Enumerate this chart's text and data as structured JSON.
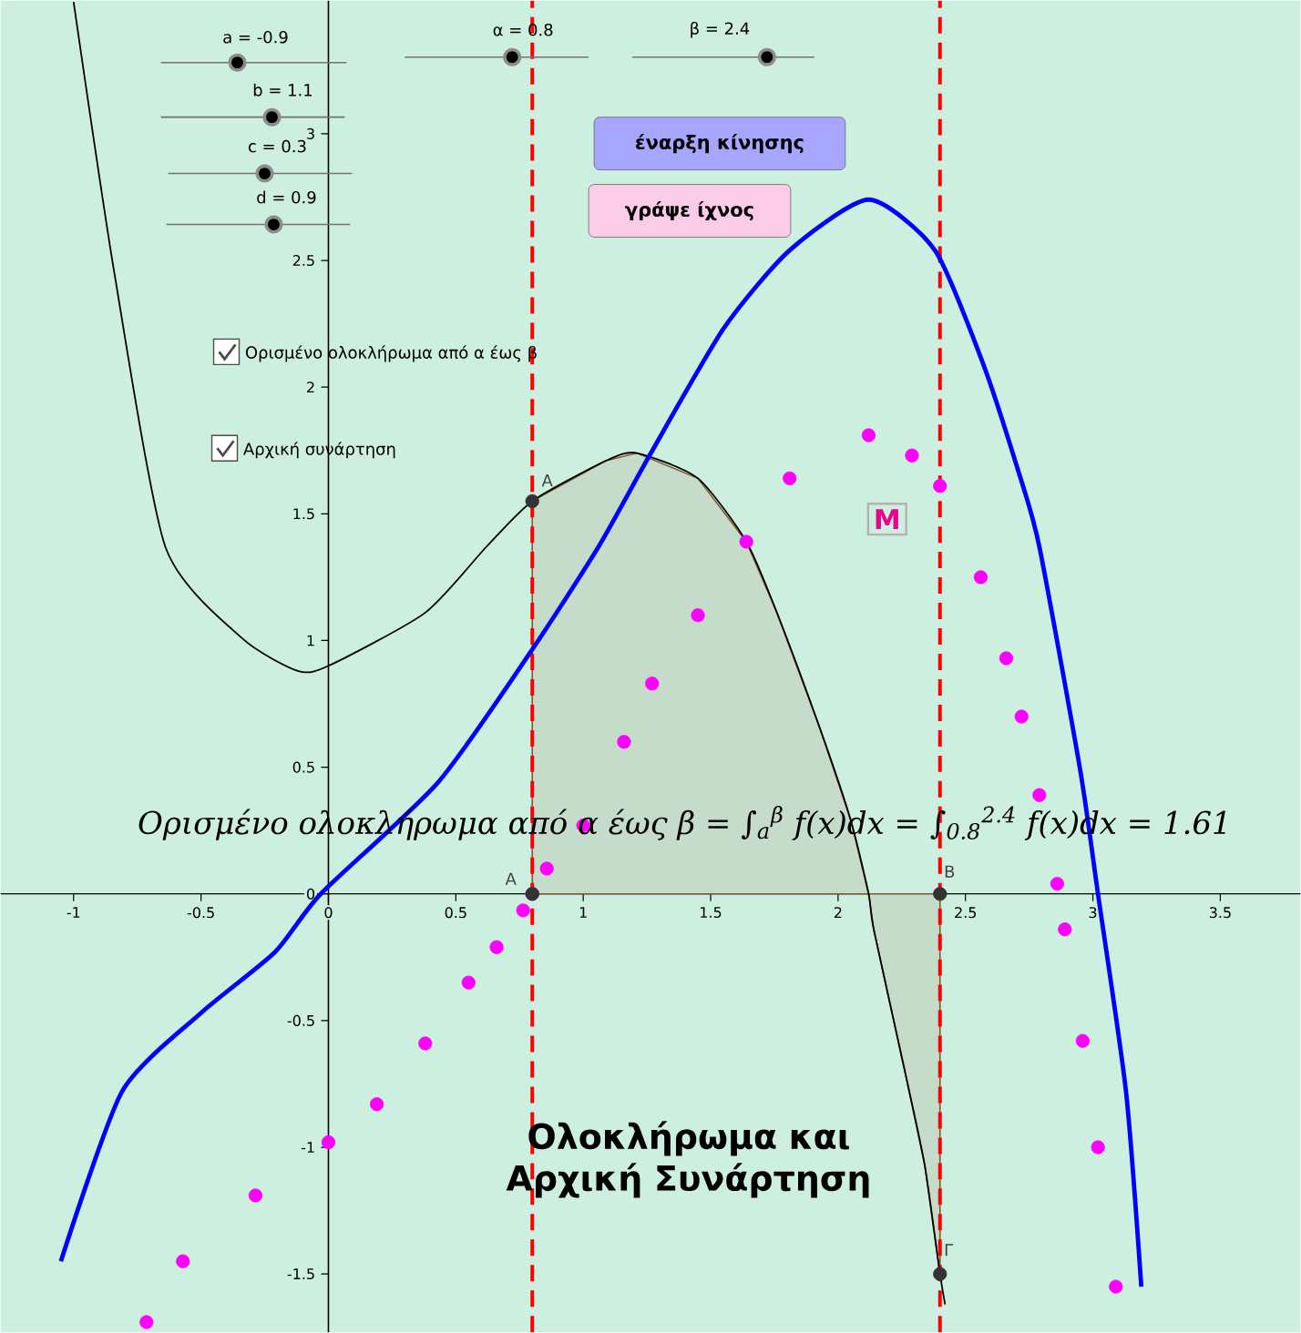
{
  "chart_data": {
    "type": "line",
    "title": "Ολοκλήρωμα και Αρχική Συνάρτηση",
    "xlim": [
      -1.286,
      3.814
    ],
    "ylim": [
      -1.73,
      3.525
    ],
    "xticks": [
      -1,
      -0.5,
      0,
      0.5,
      1,
      1.5,
      2,
      2.5,
      3,
      3.5
    ],
    "yticks": [
      -1.5,
      -1,
      -0.5,
      0,
      0.5,
      1,
      1.5,
      2,
      2.5,
      3
    ],
    "series": [
      {
        "type": "area",
        "color": "#c6dccb",
        "x": [
          0.8,
          1.09,
          1.21,
          1.45,
          1.64,
          1.76,
          1.93,
          2.05,
          2.12,
          2.14,
          2.26,
          2.34,
          2.4
        ],
        "values": [
          1.55,
          1.71,
          1.74,
          1.64,
          1.39,
          1.11,
          0.65,
          0.29,
          0,
          -0.14,
          -0.69,
          -1.07,
          -1.5
        ]
      },
      {
        "color": "#000000",
        "x": [
          -1.0,
          -0.84,
          -0.64,
          -0.34,
          -0.12,
          0,
          0.38,
          0.62,
          0.8,
          1.09,
          1.21,
          1.45,
          1.64,
          1.76,
          1.93,
          2.05,
          2.12,
          2.14,
          2.26,
          2.34,
          2.4,
          2.42
        ],
        "values": [
          3.52,
          2.45,
          1.37,
          1.01,
          0.88,
          0.9,
          1.11,
          1.37,
          1.55,
          1.71,
          1.74,
          1.64,
          1.39,
          1.11,
          0.65,
          0.29,
          0,
          -0.14,
          -0.69,
          -1.07,
          -1.5,
          -1.62
        ]
      },
      {
        "color": "#0000ff",
        "x": [
          -1.05,
          -0.81,
          -0.5,
          -0.21,
          -0.03,
          0.43,
          0.79,
          1.06,
          1.26,
          1.55,
          1.81,
          2.12,
          2.38,
          2.57,
          2.71,
          2.79,
          2.95,
          3.02,
          3.13,
          3.19
        ],
        "values": [
          -1.45,
          -0.78,
          -0.47,
          -0.23,
          0,
          0.44,
          0.95,
          1.37,
          1.73,
          2.23,
          2.54,
          2.74,
          2.54,
          2.09,
          1.66,
          1.37,
          0.49,
          0,
          -0.78,
          -1.55
        ]
      },
      {
        "type": "scatter",
        "color": "#ff00ff",
        "x": [
          -0.714,
          -0.571,
          -0.286,
          0,
          0.19,
          0.38,
          0.55,
          0.66,
          0.764,
          0.8,
          0.857,
          1.0,
          1.16,
          1.27,
          1.45,
          1.64,
          1.81,
          2.12,
          2.29,
          2.4,
          2.56,
          2.66,
          2.72,
          2.79,
          2.86,
          2.89,
          2.96,
          3.02,
          3.09
        ],
        "values": [
          -1.69,
          -1.45,
          -1.19,
          -0.98,
          -0.83,
          -0.59,
          -0.35,
          -0.21,
          -0.065,
          0,
          0.1,
          0.27,
          0.6,
          0.83,
          1.1,
          1.39,
          1.64,
          1.81,
          1.73,
          1.61,
          1.25,
          0.93,
          0.7,
          0.39,
          0.04,
          -0.14,
          -0.58,
          -1.0,
          -1.55
        ]
      },
      {
        "type": "scatter",
        "color": "#333333",
        "x": [
          0.8,
          0.8,
          2.4,
          2.4
        ],
        "values": [
          1.55,
          0,
          0,
          -1.5
        ]
      }
    ],
    "ref_lines": [
      {
        "axis": "x",
        "value": 0.8,
        "color": "#ff0000",
        "line_style": "dashed"
      },
      {
        "axis": "x",
        "value": 2.4,
        "color": "#ff0000",
        "line_style": "dashed"
      }
    ],
    "annotations": [
      "a = -0.9",
      "b = 1.1",
      "c = 0.3",
      "d = 0.9",
      "α = 0.8",
      "β = 2.4",
      "έναρξη κίνησης",
      "γράψε ίχνος",
      "Ορισμένο ολοκλήρωμα από α έως β",
      "Αρχική συνάρτηση",
      "Ορισμένο ολοκλήρωμα από α έως β = ∫$_{a}$$^{β}$ f(x)dx = ∫$_{0.8}$$^{2.4}$ f(x)dx = 1.61",
      "A",
      "A",
      "B",
      "Γ",
      "M"
    ]
  }
}
